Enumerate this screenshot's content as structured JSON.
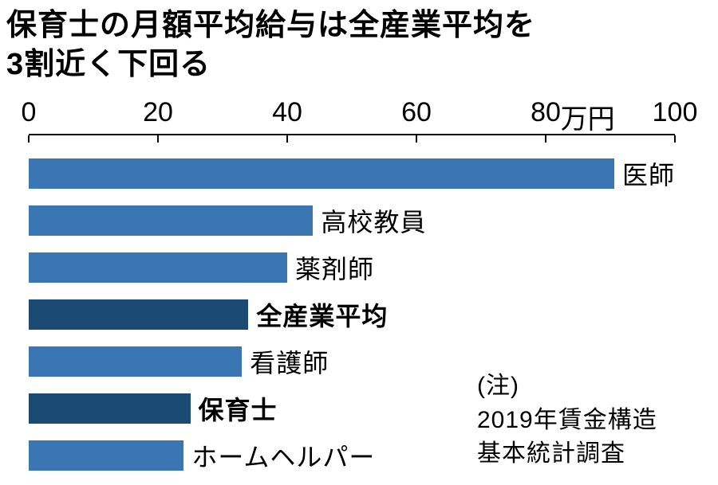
{
  "title": {
    "line1": "保育士の月額平均給与は全産業平均を",
    "line2": "3割近く下回る"
  },
  "axis": {
    "ticks": [
      0,
      20,
      40,
      60,
      80,
      100
    ],
    "unit": "万円",
    "unit_position": 86.5
  },
  "note": {
    "line1": "(注)",
    "line2": "2019年賃金構造",
    "line3": "基本統計調査"
  },
  "colors": {
    "bar": "#3b76b4",
    "bar_highlight": "#1b4b72"
  },
  "chart_data": {
    "type": "bar",
    "orientation": "horizontal",
    "title": "保育士の月額平均給与は全産業平均を3割近く下回る",
    "xlabel": "万円",
    "xlim": [
      0,
      100
    ],
    "grid": false,
    "categories": [
      "医師",
      "高校教員",
      "薬剤師",
      "全産業平均",
      "看護師",
      "保育士",
      "ホームヘルパー"
    ],
    "values": [
      91,
      44,
      40,
      34,
      33,
      25,
      24
    ],
    "highlighted": [
      "全産業平均",
      "保育士"
    ],
    "note": "(注)2019年賃金構造基本統計調査"
  }
}
